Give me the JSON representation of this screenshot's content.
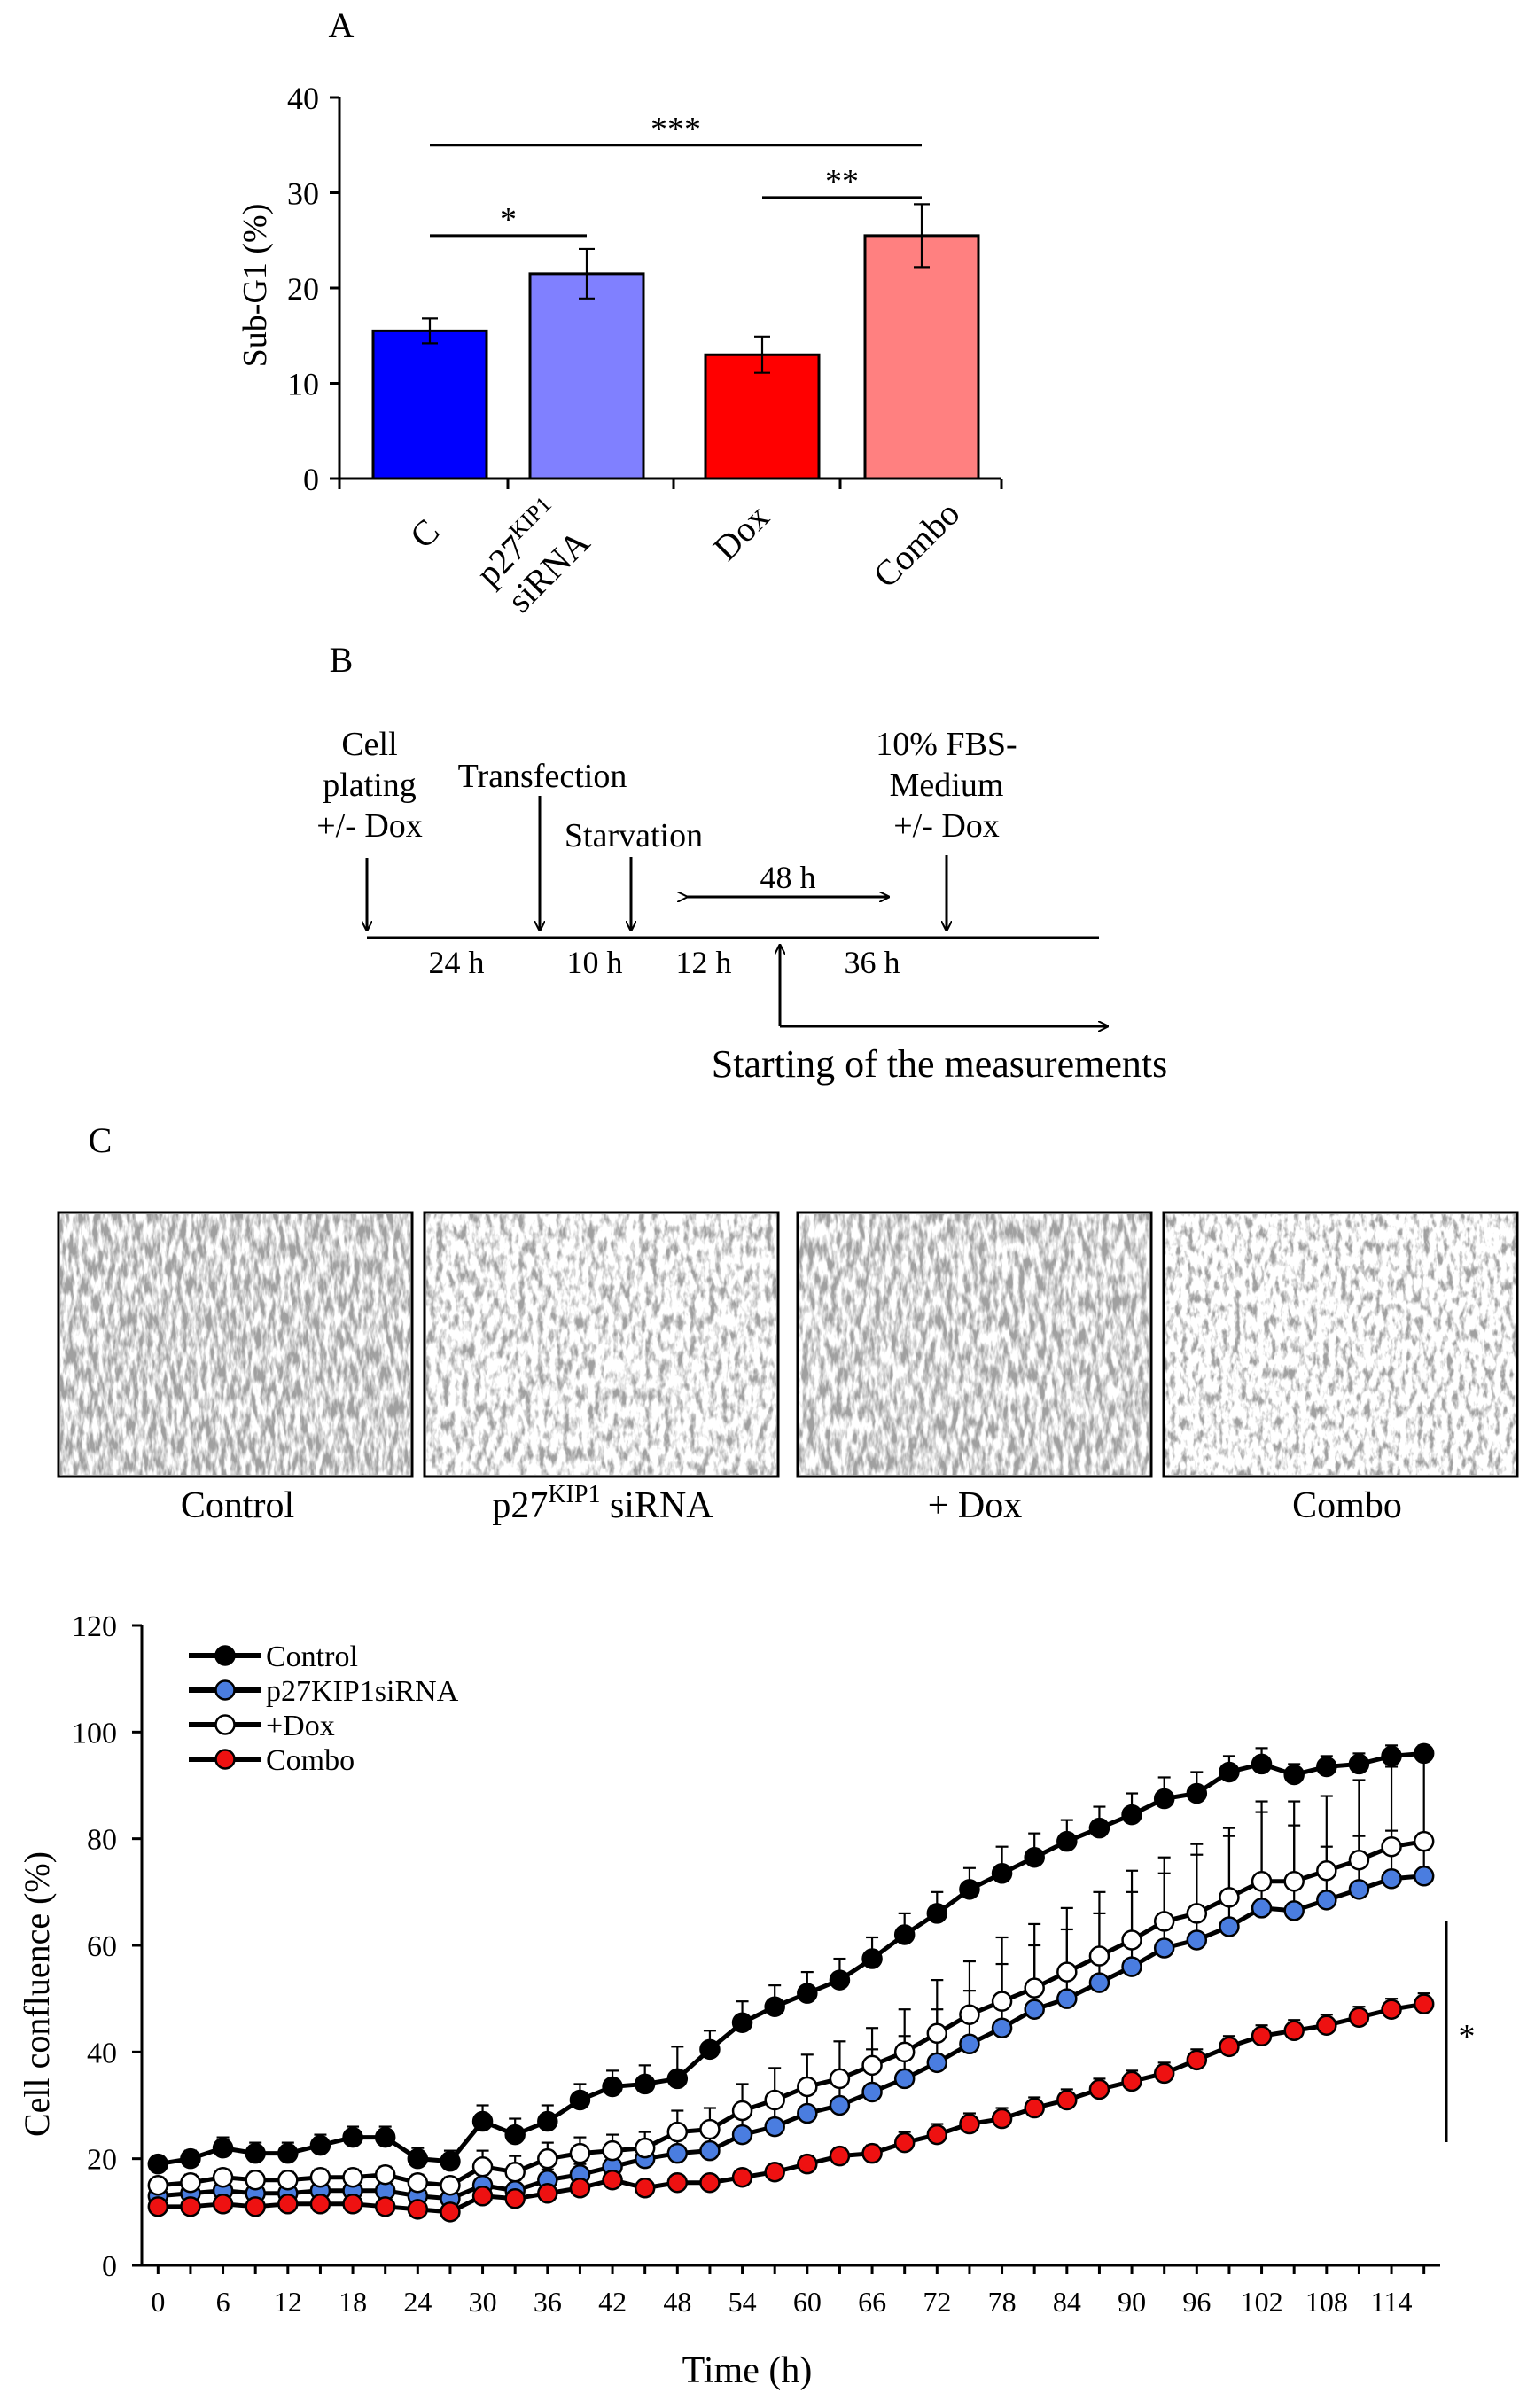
{
  "panel_labels": {
    "a": "A",
    "b": "B",
    "c": "C"
  },
  "chart_data": [
    {
      "id": "sub-g1",
      "type": "bar",
      "ylabel": "Sub-G1 (%)",
      "ylim": [
        0,
        40
      ],
      "yticks": [
        0,
        10,
        20,
        30,
        40
      ],
      "categories": [
        {
          "label": "C"
        },
        {
          "label": "p27",
          "sup": "KIP1",
          "line2": "siRNA"
        },
        {
          "label": "Dox"
        },
        {
          "label": "Combo"
        }
      ],
      "values": [
        15.5,
        21.5,
        13.0,
        25.5
      ],
      "errors": [
        1.3,
        2.6,
        1.9,
        3.3
      ],
      "colors": [
        "#0000ff",
        "#8080ff",
        "#ff0000",
        "#ff8080"
      ],
      "significance": [
        {
          "from": 0,
          "to": 3,
          "level": 35,
          "label": "***"
        },
        {
          "from": 0,
          "to": 1,
          "level": 25.5,
          "label": "*"
        },
        {
          "from": 2,
          "to": 3,
          "level": 29.5,
          "label": "**"
        }
      ]
    },
    {
      "id": "cell-confluence",
      "type": "line",
      "xlabel": "Time (h)",
      "ylabel": "Cell confluence (%)",
      "ylim": [
        0,
        120
      ],
      "yticks": [
        0,
        20,
        40,
        60,
        80,
        100,
        120
      ],
      "xlim": [
        -1.5,
        118.5
      ],
      "xticks": [
        0,
        6,
        12,
        18,
        24,
        30,
        36,
        42,
        48,
        54,
        60,
        66,
        72,
        78,
        84,
        90,
        96,
        102,
        108,
        114
      ],
      "x": [
        0,
        3,
        6,
        9,
        12,
        15,
        18,
        21,
        24,
        27,
        30,
        33,
        36,
        39,
        42,
        45,
        48,
        51,
        54,
        57,
        60,
        63,
        66,
        69,
        72,
        75,
        78,
        81,
        84,
        87,
        90,
        93,
        96,
        99,
        102,
        105,
        108,
        111,
        114,
        117
      ],
      "legend_position": "top-left",
      "series": [
        {
          "name": "Control",
          "fill": "#000000",
          "values": [
            19,
            20,
            22,
            21,
            21,
            22.5,
            24,
            24,
            20,
            19.5,
            27,
            24.5,
            27,
            31,
            33.5,
            34,
            35,
            40.5,
            45.5,
            48.5,
            51,
            53.5,
            57.5,
            62,
            66,
            70.5,
            73.5,
            76.5,
            79.5,
            82,
            84.5,
            87.5,
            88.5,
            92.5,
            94,
            92,
            93.5,
            94,
            95.5,
            96
          ],
          "errors": [
            1.5,
            1.5,
            2,
            2,
            2,
            2,
            2,
            2,
            2,
            2,
            3,
            3,
            3,
            3,
            3,
            3.5,
            6,
            3.5,
            4,
            4,
            4,
            4,
            4,
            4,
            4,
            4,
            5,
            4.5,
            4,
            4,
            4,
            4,
            4,
            3,
            3,
            2,
            2,
            2,
            2,
            1.5
          ]
        },
        {
          "name": "p27KIP1siRNA",
          "fill": "#4a7de0",
          "values": [
            13,
            13.5,
            14,
            13.5,
            13.5,
            14,
            14,
            14,
            13,
            12.5,
            15,
            14,
            16,
            17,
            18.5,
            20,
            21,
            21.5,
            24.5,
            26,
            28.5,
            30,
            32.5,
            35,
            38,
            41.5,
            44.5,
            48,
            50,
            53,
            56,
            59.5,
            61,
            63.5,
            67,
            66.5,
            68.5,
            70.5,
            72.5,
            73
          ],
          "errors": [
            1,
            1,
            1,
            1,
            1,
            1,
            1,
            1,
            1,
            1,
            2,
            2,
            2,
            2,
            2,
            2,
            3,
            3,
            5,
            6,
            6,
            6,
            8,
            8,
            10,
            10,
            12,
            12,
            13,
            13,
            14,
            14,
            16,
            17,
            18,
            16,
            10,
            10,
            9,
            8
          ]
        },
        {
          "name": "+Dox",
          "fill": "#ffffff",
          "values": [
            15,
            15.5,
            16.5,
            16,
            16,
            16.5,
            16.5,
            17,
            15.5,
            15,
            18.5,
            17.5,
            20,
            21,
            21.5,
            22,
            25,
            25.5,
            29,
            31,
            33.5,
            35,
            37.5,
            40,
            43.5,
            47,
            49.5,
            52,
            55,
            58,
            61,
            64.5,
            66,
            69,
            72,
            72,
            74,
            76,
            78.5,
            79.5
          ],
          "errors": [
            1.5,
            1.5,
            1.5,
            1.5,
            1.5,
            1.5,
            1.5,
            1.5,
            1.5,
            1.5,
            3,
            3,
            3,
            3,
            3,
            3,
            4,
            4,
            5,
            6,
            6,
            7,
            7,
            8,
            10,
            10,
            12,
            12,
            12,
            12,
            13,
            12,
            13,
            13,
            15,
            15,
            14,
            15,
            15,
            17
          ]
        },
        {
          "name": "Combo",
          "fill": "#ee1111",
          "values": [
            11,
            11,
            11.5,
            11,
            11.5,
            11.5,
            11.5,
            11,
            10.5,
            10,
            13,
            12.5,
            13.5,
            14.5,
            16,
            14.5,
            15.5,
            15.5,
            16.5,
            17.5,
            19,
            20.5,
            21,
            23,
            24.5,
            26.5,
            27.5,
            29.5,
            31,
            33,
            34.5,
            36,
            38.5,
            41,
            43,
            44,
            45,
            46.5,
            48,
            49
          ],
          "errors": [
            1,
            1,
            1,
            1,
            1,
            1,
            1,
            1,
            1,
            1,
            1,
            1,
            1,
            1,
            1,
            1,
            1,
            1,
            1,
            1,
            1.5,
            1.5,
            1.5,
            2,
            2,
            2,
            2,
            2,
            2,
            2,
            2,
            2,
            2,
            2,
            2,
            2,
            2,
            2,
            2,
            2
          ]
        }
      ],
      "significance": {
        "label": "*"
      }
    }
  ],
  "timeline": {
    "labels": {
      "cell_plating": [
        "Cell",
        "plating",
        "+/- Dox"
      ],
      "transfection": "Transfection",
      "starvation": "Starvation",
      "medium": [
        "10% FBS-",
        "Medium",
        "+/- Dox"
      ],
      "interval_48": "48 h",
      "start": "Starting of the measurements"
    },
    "segments": [
      "24 h",
      "10 h",
      "12 h",
      "36 h"
    ]
  },
  "micrographs": {
    "labels": [
      {
        "text": "Control"
      },
      {
        "text": "p27",
        "sup": "KIP1",
        "tail": " siRNA"
      },
      {
        "text": "+ Dox"
      },
      {
        "text": "Combo"
      }
    ]
  }
}
